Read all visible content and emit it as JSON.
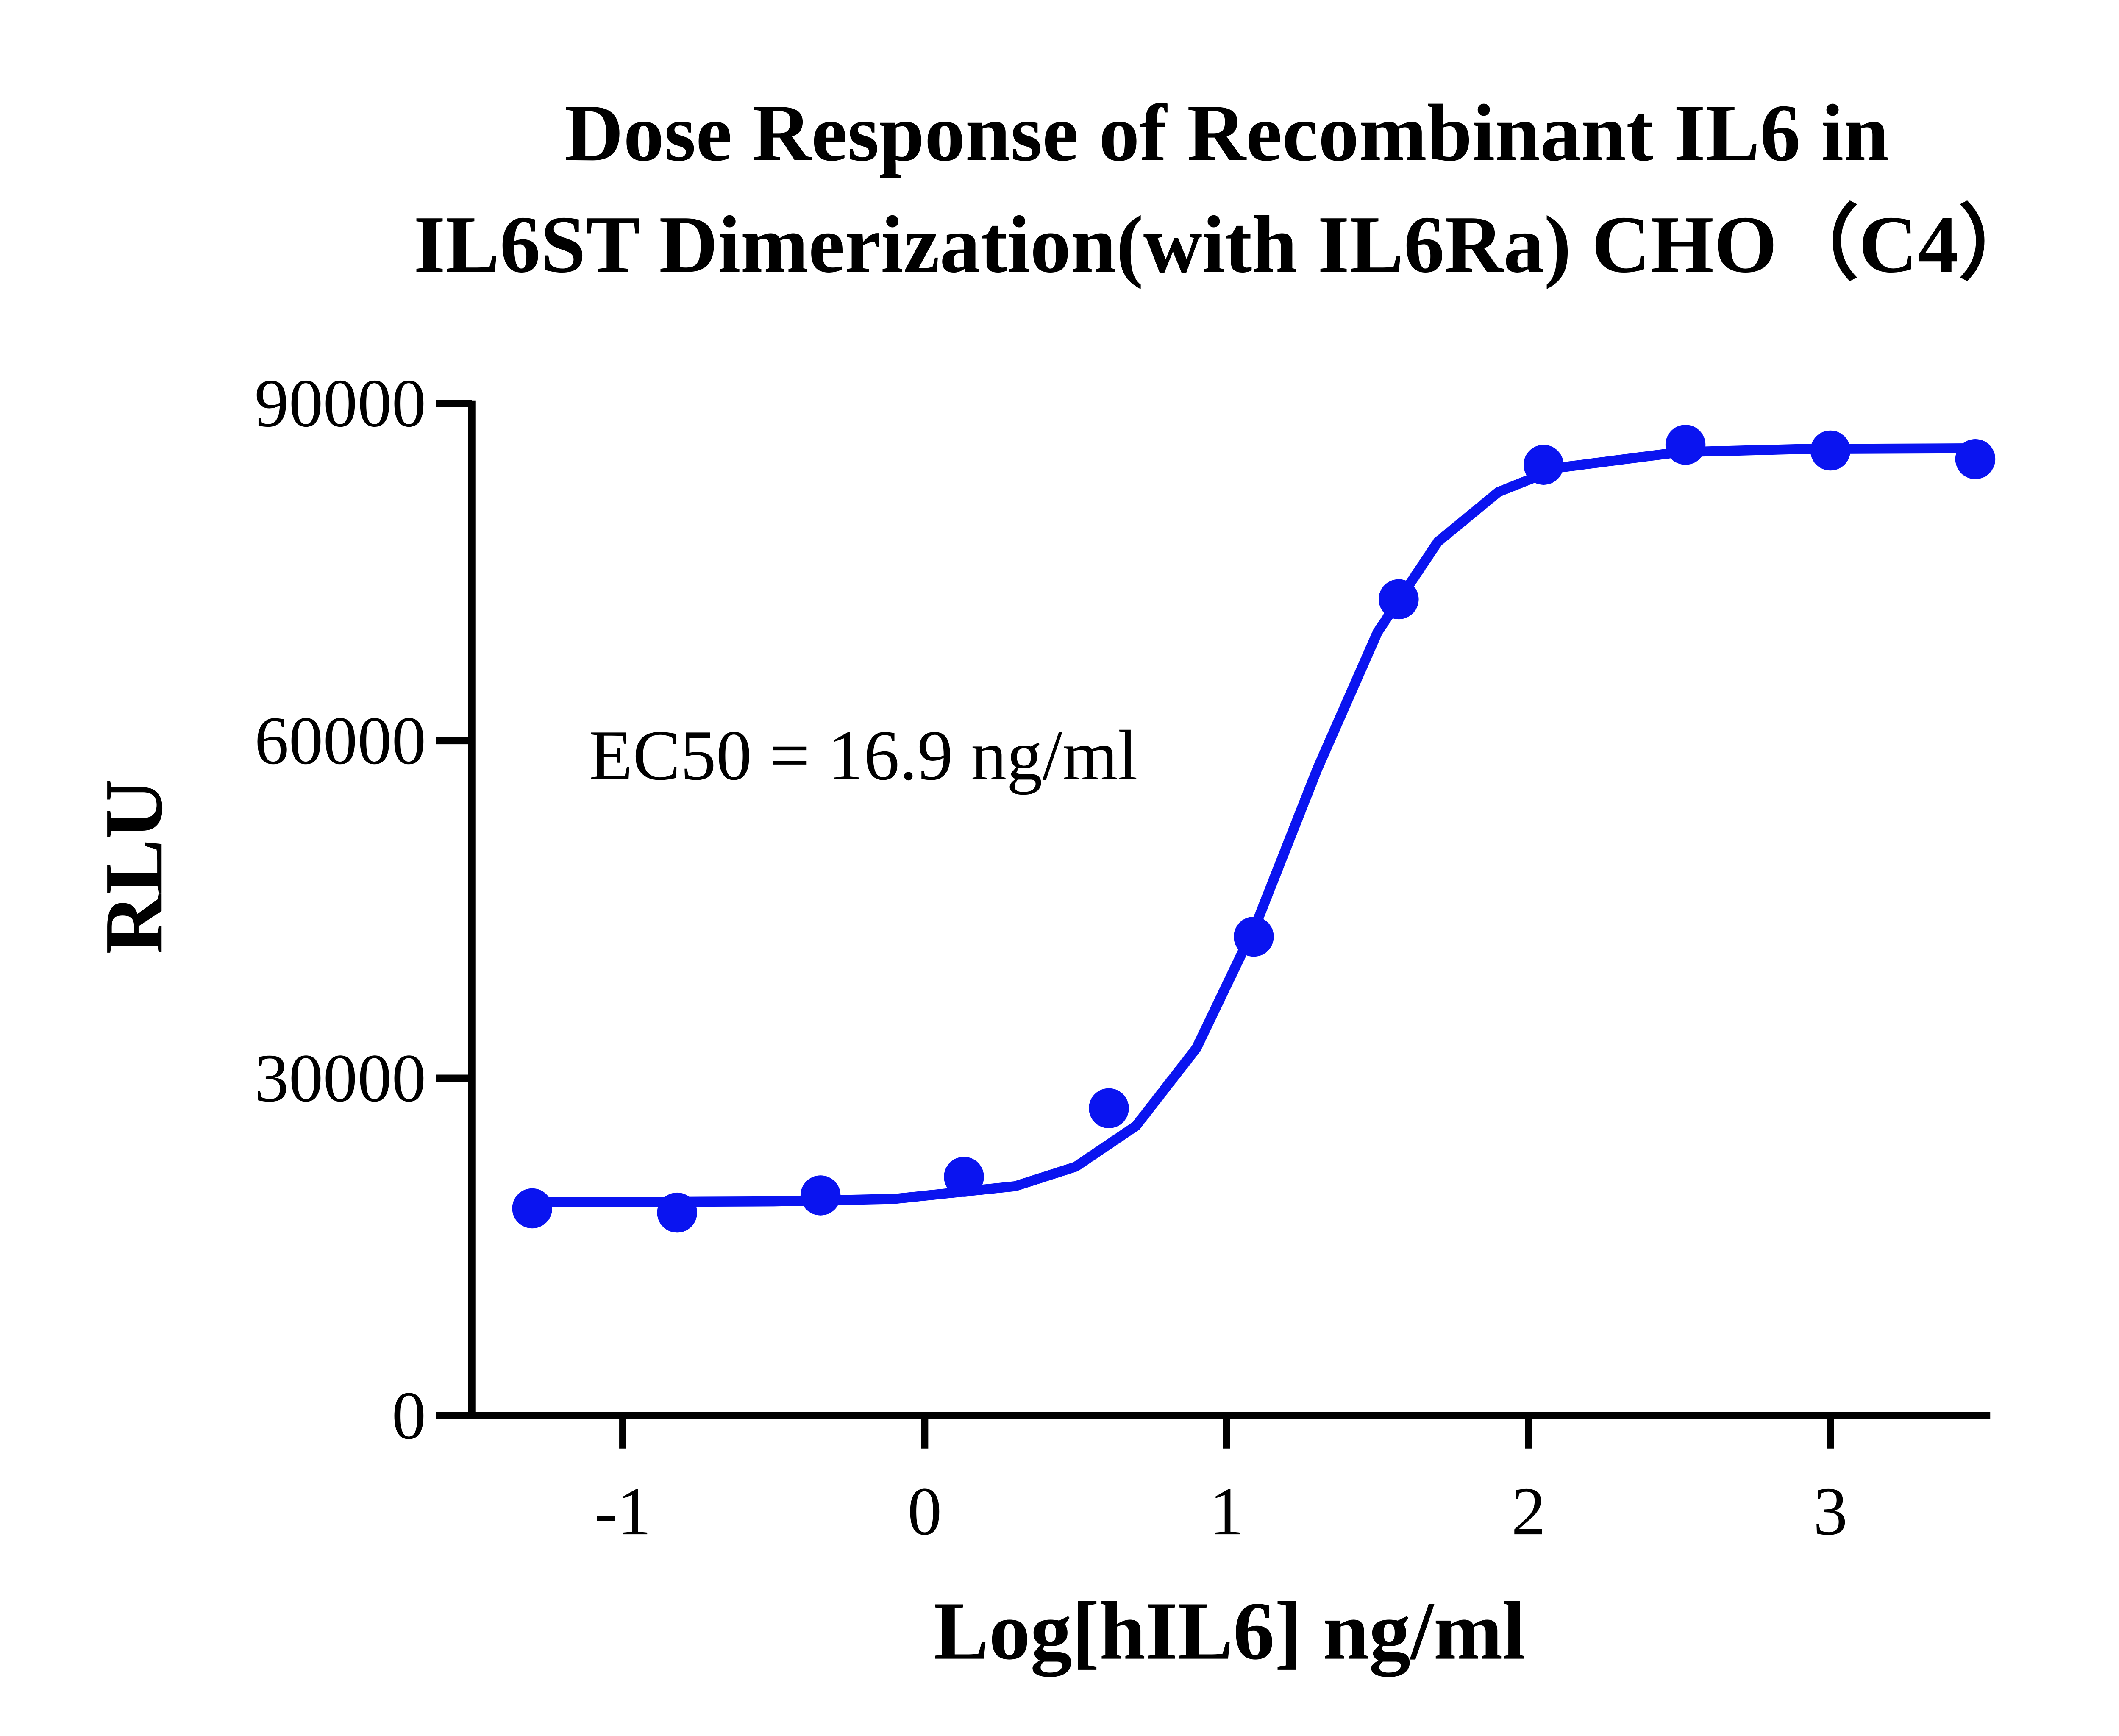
{
  "chart_data": {
    "type": "scatter",
    "title": [
      "Dose Response of Recombinant IL6 in",
      "IL6ST Dimerization(with IL6Ra) CHO（C4）"
    ],
    "x_label": "Log[hIL6] ng/ml",
    "y_label": "RLU",
    "annotation": "EC50 = 16.9 ng/ml",
    "xlim": [
      -1.5,
      3.52
    ],
    "ylim": [
      0,
      90000
    ],
    "xticks": [
      -1,
      0,
      1,
      2,
      3
    ],
    "yticks": [
      0,
      30000,
      60000,
      90000
    ],
    "color": "#0a14f0",
    "x": [
      -1.3,
      -0.82,
      -0.345,
      0.13,
      0.61,
      1.09,
      1.57,
      2.05,
      2.52,
      3.0,
      3.48
    ],
    "values": [
      18430,
      18050,
      19580,
      21230,
      27330,
      42580,
      72580,
      84530,
      86310,
      85800,
      85040
    ],
    "curve": {
      "x": [
        -1.3,
        -0.9,
        -0.5,
        -0.1,
        0.3,
        0.5,
        0.7,
        0.9,
        1.1,
        1.3,
        1.5,
        1.7,
        1.9,
        2.1,
        2.5,
        2.9,
        3.5
      ],
      "values": [
        19000,
        19000,
        19050,
        19270,
        20400,
        22130,
        25760,
        32670,
        43860,
        57460,
        69650,
        77690,
        82110,
        84270,
        85660,
        85930,
        86000
      ]
    }
  }
}
